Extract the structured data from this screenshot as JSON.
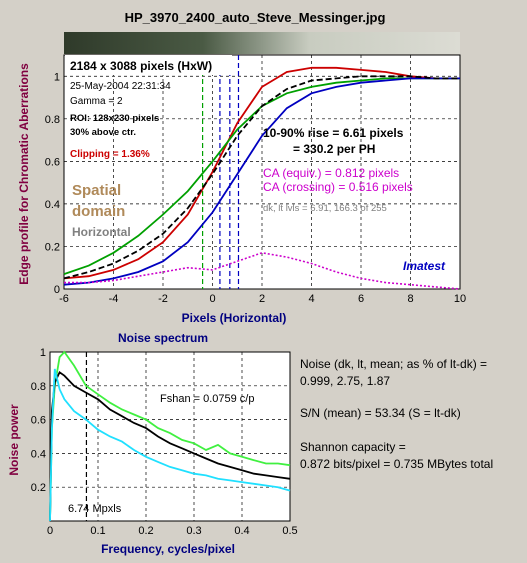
{
  "title": "HP_3970_2400_auto_Steve_Messinger.jpg",
  "colors": {
    "maroon": "#800040",
    "navy": "#000080",
    "red": "#cc0000",
    "green": "#00a000",
    "blue": "#0000c0",
    "magenta": "#cc00cc",
    "tan": "#b08a5a",
    "gray": "#808080",
    "lightgreen": "#40f040",
    "cyan": "#20e0ff"
  },
  "edge": {
    "ylabel": "Edge profile for Chromatic Aberrations",
    "xlabel": "Pixels (Horizontal)",
    "info": {
      "size": "2184 x 3088 pixels (HxW)",
      "date": "25-May-2004 22:31:34",
      "gamma": "Gamma = 2",
      "roi": "ROI: 128x230 pixels",
      "above": "30% above ctr.",
      "clipping": "Clipping =  1.36%"
    },
    "spatial1": "Spatial",
    "spatial2": "domain",
    "horizontal": "Horizontal",
    "rise1": "10-90% rise = 6.61 pixels",
    "rise2": "= 330.2 per PH",
    "ca_equiv": "CA (equiv.) = 0.812 pixels",
    "ca_cross": "CA (crossing) = 0.516 pixels",
    "dk_lt": "dk, lt lvls = 6.91, 166.3 of 255",
    "imatest": "Imatest"
  },
  "noise": {
    "title": "Noise spectrum",
    "ylabel": "Noise power",
    "xlabel": "Frequency, cycles/pixel",
    "fshan": "Fshan = 0.0759 c/p",
    "mpxls": "6.74 Mpxls"
  },
  "sidebar": {
    "noise_line1": "Noise (dk, lt, mean; as % of lt-dk) =",
    "noise_line2": "0.999,  2.75,  1.87",
    "sn": "S/N (mean) = 53.34   (S = lt-dk)",
    "shannon1": "Shannon capacity =",
    "shannon2": "0.872 bits/pixel = 0.735 MBytes total"
  },
  "chart_data": [
    {
      "type": "line",
      "title": "HP_3970_2400_auto_Steve_Messinger.jpg",
      "xlabel": "Pixels (Horizontal)",
      "ylabel": "Edge profile for Chromatic Aberrations",
      "xlim": [
        -6,
        10
      ],
      "ylim": [
        0,
        1.1
      ],
      "xticks": [
        -6,
        -4,
        -2,
        0,
        2,
        4,
        6,
        8,
        10
      ],
      "yticks": [
        0,
        0.2,
        0.4,
        0.6,
        0.8,
        1
      ],
      "grid": true,
      "x": [
        -6,
        -5,
        -4,
        -3,
        -2,
        -1,
        0,
        1,
        2,
        3,
        4,
        5,
        6,
        7,
        8,
        9,
        10
      ],
      "series": [
        {
          "color": "red",
          "values": [
            0.05,
            0.06,
            0.09,
            0.14,
            0.22,
            0.35,
            0.55,
            0.78,
            0.95,
            1.02,
            1.04,
            1.04,
            1.03,
            1.02,
            1.0,
            0.99,
            0.99
          ]
        },
        {
          "color": "green",
          "values": [
            0.07,
            0.11,
            0.17,
            0.25,
            0.35,
            0.46,
            0.6,
            0.75,
            0.86,
            0.92,
            0.95,
            0.97,
            0.98,
            0.99,
            0.99,
            0.99,
            0.99
          ]
        },
        {
          "color": "blue",
          "values": [
            0.02,
            0.03,
            0.05,
            0.08,
            0.13,
            0.22,
            0.36,
            0.54,
            0.72,
            0.85,
            0.92,
            0.95,
            0.97,
            0.98,
            0.99,
            0.99,
            0.99
          ]
        },
        {
          "color": "black",
          "dashed": true,
          "values": [
            0.05,
            0.08,
            0.12,
            0.18,
            0.26,
            0.38,
            0.54,
            0.72,
            0.86,
            0.94,
            0.98,
            0.99,
            1.0,
            1.0,
            1.0,
            0.99,
            0.99
          ]
        },
        {
          "color": "magenta",
          "dotted": true,
          "values": [
            0.03,
            0.03,
            0.04,
            0.06,
            0.08,
            0.1,
            0.09,
            0.13,
            0.17,
            0.15,
            0.12,
            0.08,
            0.05,
            0.03,
            0.02,
            0.01,
            0.0
          ]
        }
      ],
      "vlines": [
        {
          "x": -0.4,
          "color": "green",
          "dashed": true
        },
        {
          "x": 0.3,
          "color": "blue",
          "dashed": true
        },
        {
          "x": 0.7,
          "color": "blue",
          "dashed": true
        },
        {
          "x": 1.05,
          "color": "blue",
          "dashed": true
        }
      ]
    },
    {
      "type": "line",
      "title": "Noise spectrum",
      "xlabel": "Frequency, cycles/pixel",
      "ylabel": "Noise power",
      "xlim": [
        0,
        0.5
      ],
      "ylim": [
        0,
        1
      ],
      "xticks": [
        0,
        0.1,
        0.2,
        0.3,
        0.4,
        0.5
      ],
      "xtick_labels": [
        "0",
        "0.1",
        "0.2",
        "0.3",
        "0.4",
        "0.5"
      ],
      "yticks": [
        0.2,
        0.4,
        0.6,
        0.8,
        1
      ],
      "grid": true,
      "x": [
        0,
        0.004,
        0.01,
        0.02,
        0.03,
        0.05,
        0.075,
        0.1,
        0.125,
        0.15,
        0.175,
        0.2,
        0.225,
        0.25,
        0.275,
        0.3,
        0.325,
        0.35,
        0.375,
        0.4,
        0.425,
        0.45,
        0.475,
        0.5
      ],
      "series": [
        {
          "color": "lightgreen",
          "values": [
            0.0,
            0.55,
            0.8,
            0.97,
            1.0,
            0.92,
            0.8,
            0.75,
            0.7,
            0.66,
            0.63,
            0.6,
            0.55,
            0.52,
            0.48,
            0.46,
            0.42,
            0.45,
            0.4,
            0.38,
            0.36,
            0.34,
            0.34,
            0.33
          ]
        },
        {
          "color": "black",
          "values": [
            0.0,
            0.65,
            0.82,
            0.88,
            0.86,
            0.8,
            0.76,
            0.72,
            0.66,
            0.62,
            0.58,
            0.55,
            0.5,
            0.46,
            0.43,
            0.4,
            0.37,
            0.34,
            0.32,
            0.3,
            0.28,
            0.27,
            0.26,
            0.25
          ]
        },
        {
          "color": "cyan",
          "values": [
            0.0,
            0.55,
            0.9,
            0.78,
            0.72,
            0.65,
            0.6,
            0.54,
            0.5,
            0.47,
            0.42,
            0.38,
            0.35,
            0.32,
            0.3,
            0.28,
            0.27,
            0.25,
            0.24,
            0.23,
            0.22,
            0.21,
            0.2,
            0.18
          ]
        }
      ],
      "vlines": [
        {
          "x": 0.0759,
          "color": "black",
          "dashed": true
        }
      ]
    }
  ]
}
